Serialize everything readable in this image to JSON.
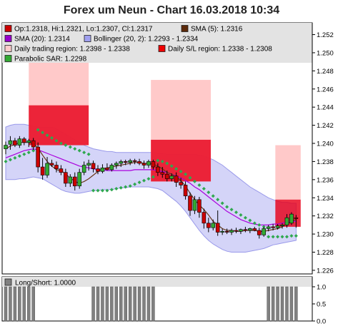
{
  "chart_data": {
    "type": "candlestick",
    "title": "Forex um Neun - Chart 16.03.2018 10:34",
    "legend": [
      {
        "label": "Op:1.2318, Hi:1.2321, Lo:1.2307, Cl:1.2317",
        "color": "#cc0000"
      },
      {
        "label": "SMA (5): 1.2316",
        "color": "#5c2a0a"
      },
      {
        "label": "SMA (20): 1.2314",
        "color": "#9900cc"
      },
      {
        "label": "Bollinger (20, 2): 1.2293 - 1.2334",
        "color": "#a0a0f0"
      },
      {
        "label": "Daily trading region: 1.2398 - 1.2338",
        "color": "#ffcccc"
      },
      {
        "label": "Daily S/L region: 1.2338 - 1.2308",
        "color": "#ee0000"
      },
      {
        "label": "Parabolic SAR: 1.2298",
        "color": "#33aa33"
      }
    ],
    "y_ticks": [
      "1.226",
      "1.228",
      "1.230",
      "1.232",
      "1.234",
      "1.236",
      "1.238",
      "1.240",
      "1.242",
      "1.244",
      "1.246",
      "1.248",
      "1.250",
      "1.252"
    ],
    "ylim": [
      1.2256,
      1.2533
    ],
    "colors": {
      "up": "#33aa33",
      "down": "#cc0000",
      "wick": "#000000"
    },
    "candles": [
      {
        "o": 1.2394,
        "h": 1.2402,
        "l": 1.2388,
        "c": 1.2398
      },
      {
        "o": 1.2399,
        "h": 1.2408,
        "l": 1.2393,
        "c": 1.2403
      },
      {
        "o": 1.2403,
        "h": 1.2406,
        "l": 1.2396,
        "c": 1.2398
      },
      {
        "o": 1.2398,
        "h": 1.2408,
        "l": 1.2395,
        "c": 1.2405
      },
      {
        "o": 1.2405,
        "h": 1.2407,
        "l": 1.2398,
        "c": 1.2401
      },
      {
        "o": 1.2401,
        "h": 1.2405,
        "l": 1.2396,
        "c": 1.2403
      },
      {
        "o": 1.2403,
        "h": 1.2406,
        "l": 1.2393,
        "c": 1.2396
      },
      {
        "o": 1.2396,
        "h": 1.2401,
        "l": 1.2368,
        "c": 1.2374
      },
      {
        "o": 1.2374,
        "h": 1.2384,
        "l": 1.236,
        "c": 1.2365
      },
      {
        "o": 1.2365,
        "h": 1.2385,
        "l": 1.2362,
        "c": 1.2378
      },
      {
        "o": 1.2378,
        "h": 1.2382,
        "l": 1.2374,
        "c": 1.2376
      },
      {
        "o": 1.2376,
        "h": 1.238,
        "l": 1.2368,
        "c": 1.2372
      },
      {
        "o": 1.2372,
        "h": 1.2376,
        "l": 1.2365,
        "c": 1.2368
      },
      {
        "o": 1.2368,
        "h": 1.2372,
        "l": 1.2352,
        "c": 1.2356
      },
      {
        "o": 1.2356,
        "h": 1.2366,
        "l": 1.2352,
        "c": 1.2363
      },
      {
        "o": 1.2363,
        "h": 1.2368,
        "l": 1.2348,
        "c": 1.2353
      },
      {
        "o": 1.2353,
        "h": 1.2372,
        "l": 1.235,
        "c": 1.2368
      },
      {
        "o": 1.2368,
        "h": 1.238,
        "l": 1.2365,
        "c": 1.2376
      },
      {
        "o": 1.2376,
        "h": 1.2382,
        "l": 1.237,
        "c": 1.2378
      },
      {
        "o": 1.2378,
        "h": 1.2381,
        "l": 1.2368,
        "c": 1.2372
      },
      {
        "o": 1.2372,
        "h": 1.2376,
        "l": 1.2366,
        "c": 1.2369
      },
      {
        "o": 1.2369,
        "h": 1.2377,
        "l": 1.2367,
        "c": 1.2373
      },
      {
        "o": 1.2373,
        "h": 1.2378,
        "l": 1.237,
        "c": 1.2371
      },
      {
        "o": 1.2371,
        "h": 1.2378,
        "l": 1.2369,
        "c": 1.2376
      },
      {
        "o": 1.2376,
        "h": 1.238,
        "l": 1.2372,
        "c": 1.2378
      },
      {
        "o": 1.2378,
        "h": 1.2382,
        "l": 1.2374,
        "c": 1.238
      },
      {
        "o": 1.238,
        "h": 1.2382,
        "l": 1.2376,
        "c": 1.2379
      },
      {
        "o": 1.2379,
        "h": 1.2383,
        "l": 1.2376,
        "c": 1.2381
      },
      {
        "o": 1.2381,
        "h": 1.2383,
        "l": 1.2377,
        "c": 1.238
      },
      {
        "o": 1.238,
        "h": 1.2383,
        "l": 1.2376,
        "c": 1.2378
      },
      {
        "o": 1.2378,
        "h": 1.2381,
        "l": 1.2372,
        "c": 1.2376
      },
      {
        "o": 1.2376,
        "h": 1.2382,
        "l": 1.2373,
        "c": 1.238
      },
      {
        "o": 1.238,
        "h": 1.2382,
        "l": 1.2371,
        "c": 1.2374
      },
      {
        "o": 1.2374,
        "h": 1.2378,
        "l": 1.2364,
        "c": 1.2368
      },
      {
        "o": 1.2368,
        "h": 1.2374,
        "l": 1.2362,
        "c": 1.2366
      },
      {
        "o": 1.2366,
        "h": 1.237,
        "l": 1.2358,
        "c": 1.2361
      },
      {
        "o": 1.2361,
        "h": 1.2367,
        "l": 1.2358,
        "c": 1.2364
      },
      {
        "o": 1.2364,
        "h": 1.2368,
        "l": 1.2352,
        "c": 1.2357
      },
      {
        "o": 1.2357,
        "h": 1.2362,
        "l": 1.235,
        "c": 1.2354
      },
      {
        "o": 1.2354,
        "h": 1.2358,
        "l": 1.2338,
        "c": 1.2342
      },
      {
        "o": 1.2342,
        "h": 1.2346,
        "l": 1.232,
        "c": 1.2326
      },
      {
        "o": 1.2326,
        "h": 1.2342,
        "l": 1.2322,
        "c": 1.2338
      },
      {
        "o": 1.2338,
        "h": 1.2341,
        "l": 1.2318,
        "c": 1.2324
      },
      {
        "o": 1.2324,
        "h": 1.2328,
        "l": 1.2306,
        "c": 1.2312
      },
      {
        "o": 1.2312,
        "h": 1.2318,
        "l": 1.2302,
        "c": 1.2307
      },
      {
        "o": 1.2307,
        "h": 1.2316,
        "l": 1.2304,
        "c": 1.2312
      },
      {
        "o": 1.2312,
        "h": 1.2326,
        "l": 1.2298,
        "c": 1.2302
      },
      {
        "o": 1.2302,
        "h": 1.2306,
        "l": 1.2299,
        "c": 1.2303
      },
      {
        "o": 1.2303,
        "h": 1.2306,
        "l": 1.23,
        "c": 1.2302
      },
      {
        "o": 1.2302,
        "h": 1.2306,
        "l": 1.2299,
        "c": 1.2304
      },
      {
        "o": 1.2304,
        "h": 1.2307,
        "l": 1.2301,
        "c": 1.2303
      },
      {
        "o": 1.2303,
        "h": 1.2306,
        "l": 1.23,
        "c": 1.2305
      },
      {
        "o": 1.2305,
        "h": 1.2308,
        "l": 1.2302,
        "c": 1.2304
      },
      {
        "o": 1.2304,
        "h": 1.2307,
        "l": 1.2301,
        "c": 1.2306
      },
      {
        "o": 1.2306,
        "h": 1.2308,
        "l": 1.2303,
        "c": 1.2304
      },
      {
        "o": 1.2304,
        "h": 1.2307,
        "l": 1.2295,
        "c": 1.2299
      },
      {
        "o": 1.2299,
        "h": 1.2308,
        "l": 1.2297,
        "c": 1.2306
      },
      {
        "o": 1.2306,
        "h": 1.231,
        "l": 1.2303,
        "c": 1.2308
      },
      {
        "o": 1.2308,
        "h": 1.2311,
        "l": 1.2304,
        "c": 1.2307
      },
      {
        "o": 1.2307,
        "h": 1.2311,
        "l": 1.2305,
        "c": 1.2309
      },
      {
        "o": 1.2309,
        "h": 1.2312,
        "l": 1.2306,
        "c": 1.231
      },
      {
        "o": 1.231,
        "h": 1.2322,
        "l": 1.2307,
        "c": 1.2318
      },
      {
        "o": 1.2312,
        "h": 1.2324,
        "l": 1.231,
        "c": 1.2322
      },
      {
        "o": 1.2318,
        "h": 1.2321,
        "l": 1.2307,
        "c": 1.2317
      }
    ],
    "sma5": [
      1.2394,
      1.2397,
      1.2399,
      1.2401,
      1.2401,
      1.2401,
      1.24,
      1.2395,
      1.2387,
      1.238,
      1.2375,
      1.2371,
      1.237,
      1.2366,
      1.2362,
      1.2358,
      1.2356,
      1.2358,
      1.2361,
      1.2365,
      1.2369,
      1.2372,
      1.2373,
      1.2374,
      1.2375,
      1.2376,
      1.2377,
      1.2378,
      1.2379,
      1.2379,
      1.2378,
      1.2378,
      1.2377,
      1.2375,
      1.2372,
      1.2368,
      1.2366,
      1.2363,
      1.2359,
      1.2353,
      1.2345,
      1.2338,
      1.2332,
      1.2327,
      1.2321,
      1.2314,
      1.231,
      1.2306,
      1.2304,
      1.2304,
      1.2303,
      1.2303,
      1.2304,
      1.2304,
      1.2304,
      1.2303,
      1.2303,
      1.2304,
      1.2305,
      1.2306,
      1.2308,
      1.2311,
      1.2314,
      1.2316
    ],
    "sma20": [
      1.2384,
      1.2386,
      1.2388,
      1.239,
      1.2392,
      1.2393,
      1.2394,
      1.2393,
      1.2391,
      1.2389,
      1.2387,
      1.2385,
      1.2383,
      1.2381,
      1.2379,
      1.2377,
      1.2375,
      1.2374,
      1.2373,
      1.2372,
      1.2371,
      1.2371,
      1.237,
      1.237,
      1.237,
      1.237,
      1.237,
      1.237,
      1.2371,
      1.2371,
      1.2371,
      1.2371,
      1.2371,
      1.237,
      1.2369,
      1.2368,
      1.2366,
      1.2364,
      1.2362,
      1.2359,
      1.2356,
      1.2352,
      1.2349,
      1.2345,
      1.2341,
      1.2337,
      1.2333,
      1.2329,
      1.2325,
      1.2322,
      1.2319,
      1.2316,
      1.2314,
      1.2312,
      1.2311,
      1.231,
      1.231,
      1.231,
      1.2311,
      1.2311,
      1.2312,
      1.2313,
      1.2314,
      1.2314
    ],
    "bb_upper": [
      1.2418,
      1.242,
      1.2421,
      1.2421,
      1.2421,
      1.242,
      1.2419,
      1.2418,
      1.2418,
      1.2418,
      1.2418,
      1.2416,
      1.2413,
      1.241,
      1.2407,
      1.2404,
      1.2401,
      1.2398,
      1.2396,
      1.2394,
      1.2393,
      1.2392,
      1.2391,
      1.2391,
      1.239,
      1.239,
      1.239,
      1.239,
      1.239,
      1.239,
      1.239,
      1.239,
      1.239,
      1.2389,
      1.2389,
      1.2388,
      1.2388,
      1.2388,
      1.2388,
      1.2388,
      1.2388,
      1.2388,
      1.2387,
      1.2386,
      1.2384,
      1.2382,
      1.2379,
      1.2376,
      1.2372,
      1.2368,
      1.2364,
      1.236,
      1.2356,
      1.2352,
      1.2349,
      1.2346,
      1.2343,
      1.234,
      1.2338,
      1.2336,
      1.2335,
      1.2335,
      1.2334,
      1.2334
    ],
    "bb_lower": [
      1.236,
      1.236,
      1.236,
      1.2361,
      1.2361,
      1.2362,
      1.2363,
      1.2362,
      1.2361,
      1.2358,
      1.2355,
      1.2352,
      1.2349,
      1.2347,
      1.2346,
      1.2345,
      1.2345,
      1.2346,
      1.2347,
      1.2348,
      1.2348,
      1.2349,
      1.2349,
      1.2349,
      1.235,
      1.2351,
      1.2351,
      1.2352,
      1.2352,
      1.2352,
      1.2352,
      1.2352,
      1.2351,
      1.235,
      1.2348,
      1.2344,
      1.234,
      1.2336,
      1.2331,
      1.2325,
      1.2318,
      1.2311,
      1.2304,
      1.2298,
      1.2293,
      1.2289,
      1.2286,
      1.2283,
      1.2281,
      1.228,
      1.228,
      1.228,
      1.228,
      1.2281,
      1.2282,
      1.2283,
      1.2284,
      1.2286,
      1.2288,
      1.2289,
      1.229,
      1.2291,
      1.2292,
      1.2293
    ],
    "sar": [
      1.238,
      1.2382,
      1.2384,
      1.2386,
      1.2388,
      1.239,
      1.2392,
      1.2415,
      1.2412,
      1.2409,
      1.2406,
      1.2403,
      1.24,
      1.2398,
      1.2396,
      1.2394,
      1.2392,
      1.239,
      1.2388,
      1.2348,
      1.2348,
      1.2348,
      1.2348,
      1.2349,
      1.235,
      1.2351,
      1.2352,
      1.2353,
      1.2355,
      1.2357,
      1.2359,
      1.2361,
      1.2363,
      1.2381,
      1.238,
      1.2378,
      1.2375,
      1.2372,
      1.2369,
      1.2366,
      1.2362,
      1.2358,
      1.2354,
      1.235,
      1.2346,
      1.2342,
      1.2338,
      1.2334,
      1.233,
      1.2327,
      1.2324,
      1.2321,
      1.2318,
      1.2315,
      1.2312,
      1.231,
      1.2308,
      1.2297,
      1.2297,
      1.2297,
      1.2297,
      1.2297,
      1.2298,
      1.2298
    ],
    "trading_regions": [
      {
        "x0": 5,
        "x1": 18,
        "lo": 1.2398,
        "hi": 1.25
      },
      {
        "x0": 31.5,
        "x1": 44.5,
        "lo": 1.2358,
        "hi": 1.247
      },
      {
        "x0": 58.5,
        "x1": 64,
        "lo": 1.2338,
        "hi": 1.2398
      }
    ],
    "sl_regions": [
      {
        "x0": 5,
        "x1": 18,
        "lo": 1.2398,
        "hi": 1.2442
      },
      {
        "x0": 31.5,
        "x1": 44.5,
        "lo": 1.2358,
        "hi": 1.2404
      },
      {
        "x0": 58.5,
        "x1": 64,
        "lo": 1.2308,
        "hi": 1.2338
      }
    ],
    "long_short": {
      "label": "Long/Short: 1.0000",
      "ticks": [
        "1.0",
        "0.5",
        "0.0"
      ],
      "ylim": [
        0,
        1
      ],
      "values": [
        1,
        1,
        1,
        1,
        1,
        1,
        1,
        0,
        0,
        0,
        0,
        0,
        0,
        0,
        0,
        0,
        0,
        0,
        0,
        1,
        1,
        1,
        1,
        1,
        1,
        1,
        1,
        1,
        1,
        1,
        1,
        1,
        1,
        0,
        0,
        0,
        0,
        0,
        0,
        0,
        0,
        0,
        0,
        0,
        0,
        0,
        0,
        0,
        0,
        0,
        0,
        0,
        0,
        0,
        0,
        0,
        0,
        1,
        1,
        1,
        1,
        1,
        1,
        1
      ]
    }
  }
}
